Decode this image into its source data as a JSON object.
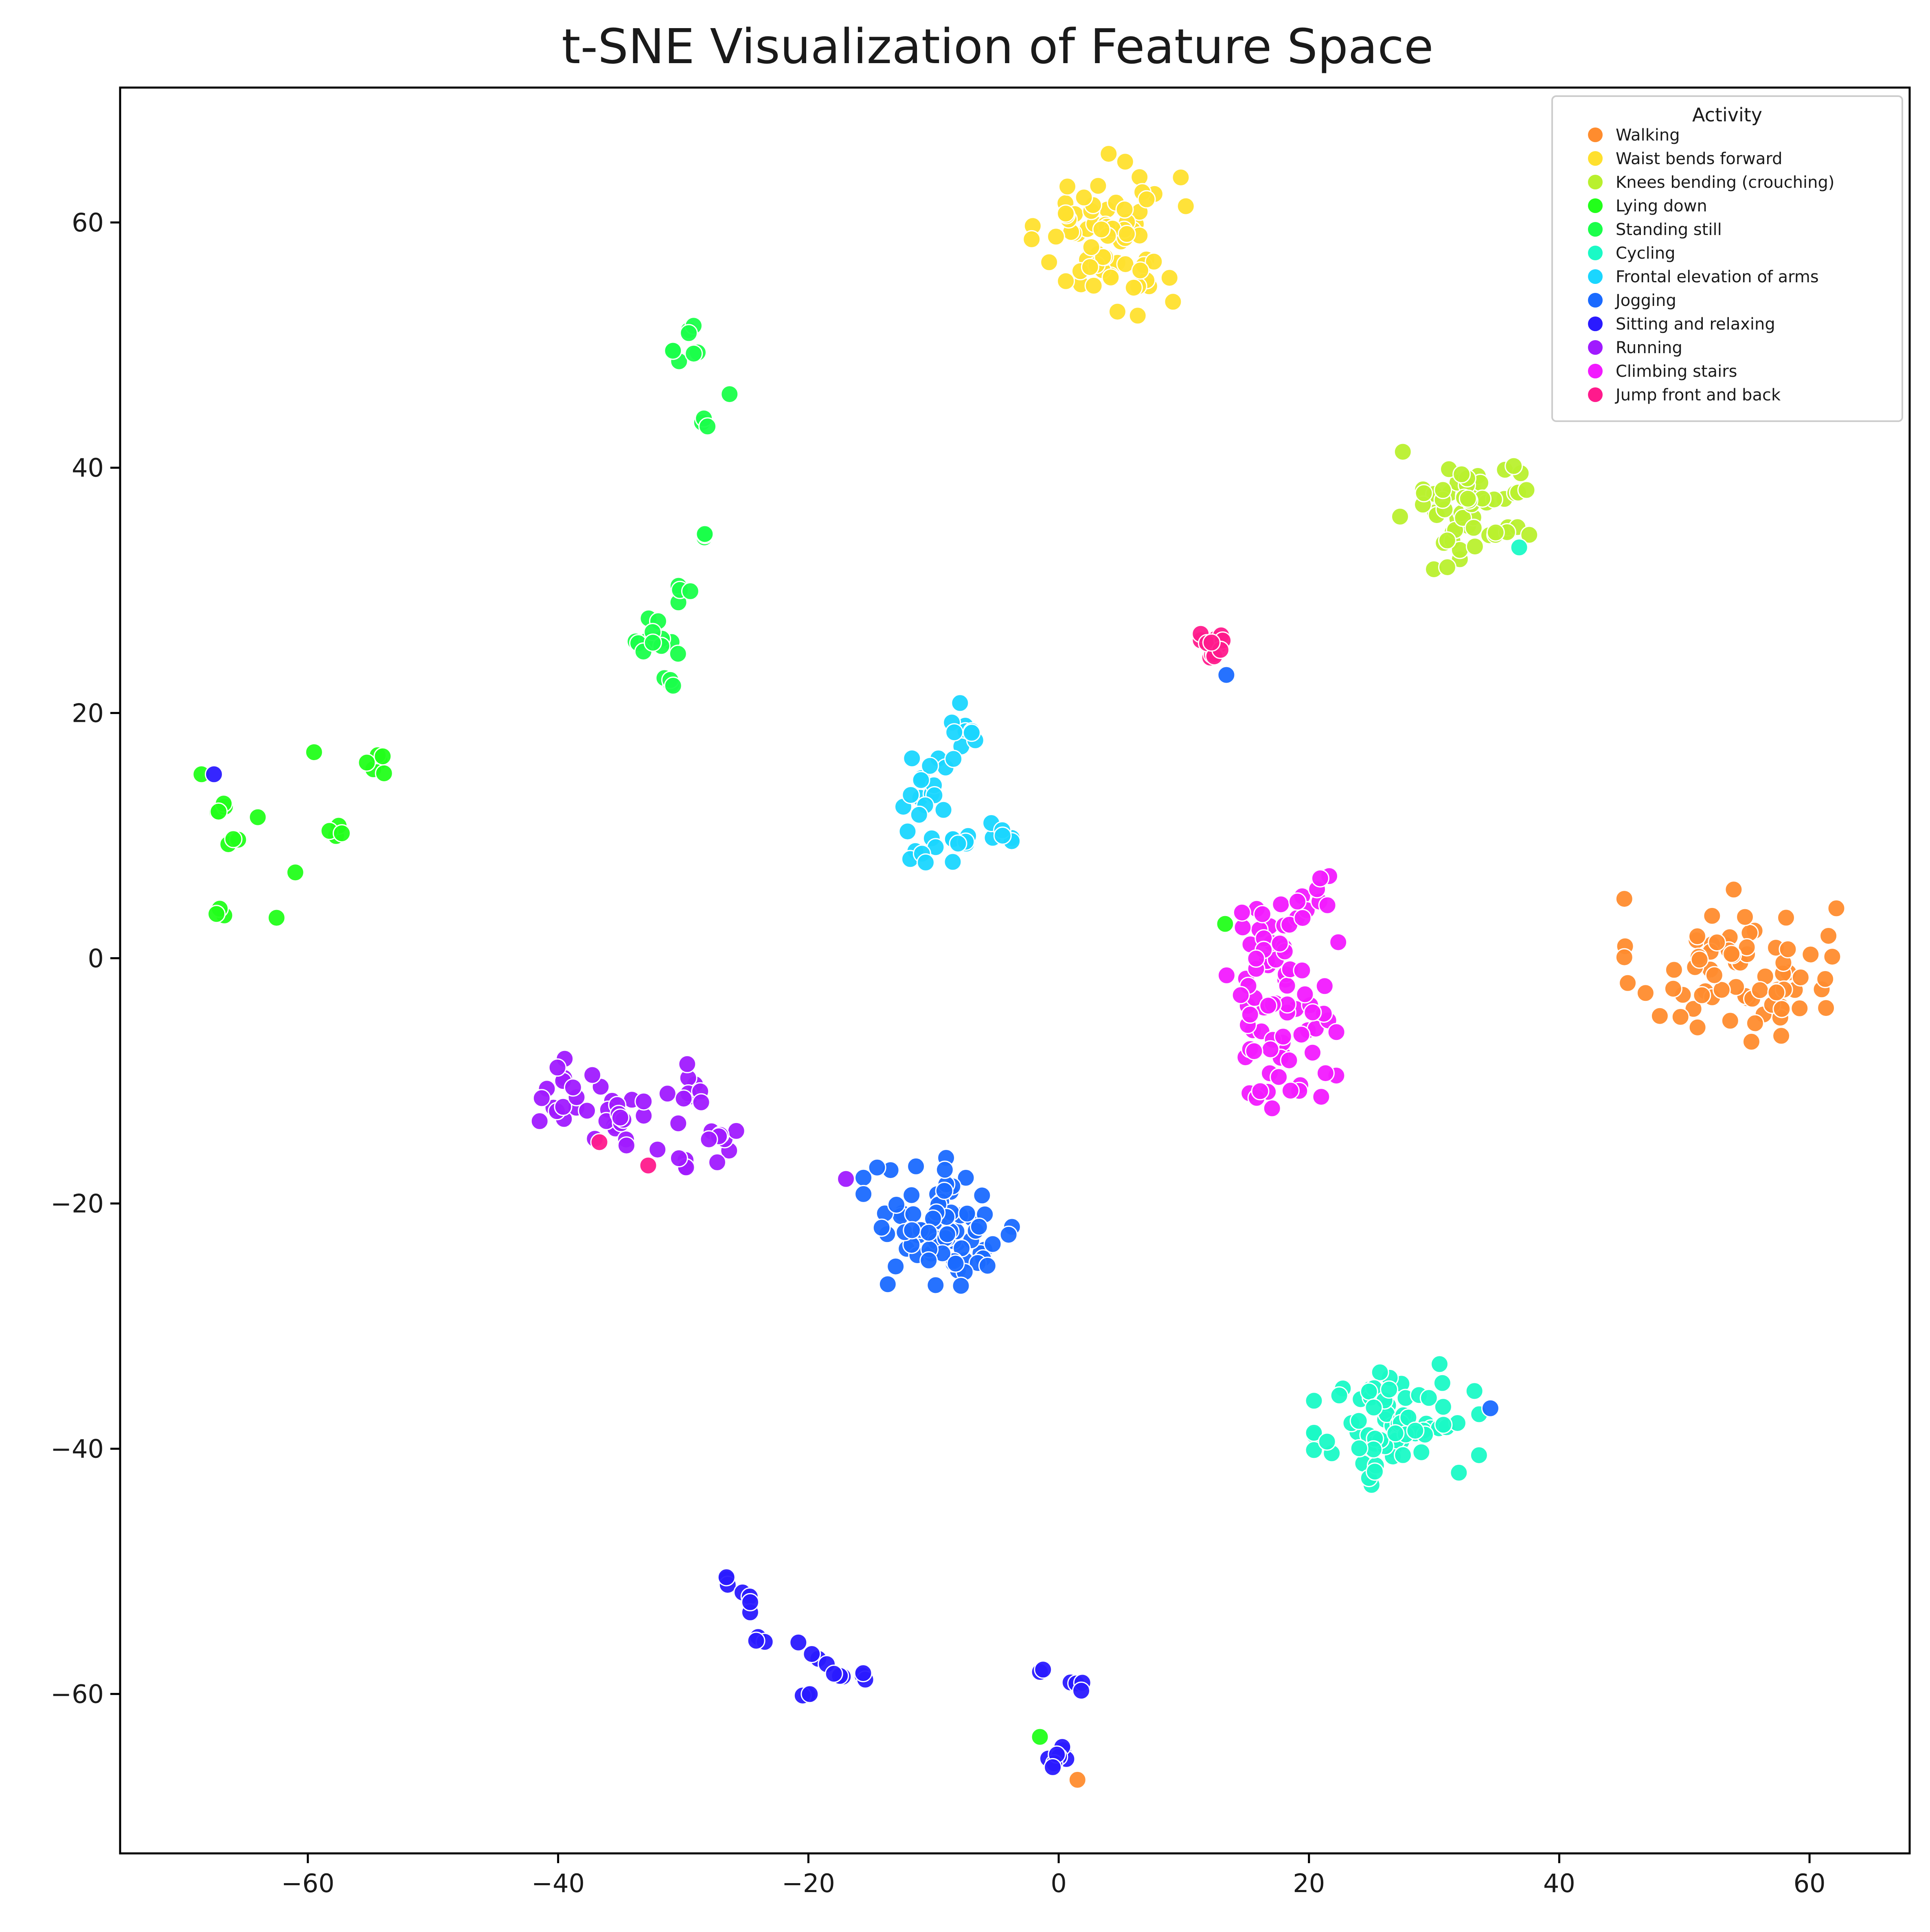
{
  "chart_data": {
    "type": "scatter",
    "title": "t-SNE Visualization of Feature Space",
    "xlabel": "",
    "ylabel": "",
    "xlim": [
      -75,
      68
    ],
    "ylim": [
      -73,
      71
    ],
    "xticks": [
      -60,
      -40,
      -20,
      0,
      20,
      40,
      60
    ],
    "yticks": [
      -60,
      -40,
      -20,
      0,
      20,
      40,
      60
    ],
    "grid": false,
    "legend": {
      "title": "Activity",
      "placement": "top-right"
    },
    "series": [
      {
        "name": "Walking",
        "color": "#ff8c2e",
        "clusters": [
          {
            "cx": 54,
            "cy": -1,
            "sx": 4,
            "sy": 3,
            "n": 75
          },
          {
            "cx": 1.5,
            "cy": -67,
            "sx": 0.2,
            "sy": 0.2,
            "n": 1
          }
        ]
      },
      {
        "name": "Waist bends forward",
        "color": "#ffe02e",
        "clusters": [
          {
            "cx": 4,
            "cy": 59,
            "sx": 2.8,
            "sy": 3,
            "n": 75
          }
        ]
      },
      {
        "name": "Knees bending (crouching)",
        "color": "#b9f02e",
        "clusters": [
          {
            "cx": 33,
            "cy": 37,
            "sx": 2.6,
            "sy": 2.4,
            "n": 60
          },
          {
            "cx": 27.5,
            "cy": 41.3,
            "sx": 0.2,
            "sy": 0.2,
            "n": 1
          }
        ]
      },
      {
        "name": "Lying down",
        "color": "#22ff1a",
        "clusters": [
          {
            "cx": -67,
            "cy": 12,
            "sx": 0.4,
            "sy": 0.4,
            "n": 4
          },
          {
            "cx": -66,
            "cy": 9.3,
            "sx": 0.3,
            "sy": 0.3,
            "n": 3
          },
          {
            "cx": -67,
            "cy": 3.6,
            "sx": 0.3,
            "sy": 0.2,
            "n": 3
          },
          {
            "cx": -68.5,
            "cy": 15,
            "sx": 0.2,
            "sy": 0.2,
            "n": 1
          },
          {
            "cx": -64,
            "cy": 11.5,
            "sx": 0.2,
            "sy": 0.2,
            "n": 1
          },
          {
            "cx": -62.5,
            "cy": 3.3,
            "sx": 0.2,
            "sy": 0.2,
            "n": 1
          },
          {
            "cx": -61,
            "cy": 7,
            "sx": 0.2,
            "sy": 0.2,
            "n": 1
          },
          {
            "cx": -59.5,
            "cy": 16.8,
            "sx": 0.2,
            "sy": 0.2,
            "n": 1
          },
          {
            "cx": -57.5,
            "cy": 10.6,
            "sx": 0.4,
            "sy": 0.4,
            "n": 4
          },
          {
            "cx": -54.2,
            "cy": 15.5,
            "sx": 0.5,
            "sy": 0.8,
            "n": 6
          },
          {
            "cx": -1.5,
            "cy": -63.5,
            "sx": 0.2,
            "sy": 0.2,
            "n": 1
          },
          {
            "cx": 13.3,
            "cy": 2.8,
            "sx": 0.2,
            "sy": 0.2,
            "n": 1
          }
        ]
      },
      {
        "name": "Standing still",
        "color": "#1aff4a",
        "clusters": [
          {
            "cx": -29.5,
            "cy": 49.5,
            "sx": 0.6,
            "sy": 1.2,
            "n": 8
          },
          {
            "cx": -26.3,
            "cy": 46,
            "sx": 0.2,
            "sy": 0.2,
            "n": 1
          },
          {
            "cx": -28.5,
            "cy": 43.7,
            "sx": 0.3,
            "sy": 0.3,
            "n": 3
          },
          {
            "cx": -28.2,
            "cy": 34.5,
            "sx": 0.3,
            "sy": 0.3,
            "n": 3
          },
          {
            "cx": -29.8,
            "cy": 29.9,
            "sx": 0.4,
            "sy": 0.4,
            "n": 4
          },
          {
            "cx": -32.5,
            "cy": 26.2,
            "sx": 1,
            "sy": 0.8,
            "n": 12
          },
          {
            "cx": -30.8,
            "cy": 22.5,
            "sx": 0.5,
            "sy": 0.4,
            "n": 4
          }
        ]
      },
      {
        "name": "Cycling",
        "color": "#1afac6",
        "clusters": [
          {
            "cx": 27,
            "cy": -38,
            "sx": 3,
            "sy": 2.5,
            "n": 75
          },
          {
            "cx": 36.8,
            "cy": 33.5,
            "sx": 0.2,
            "sy": 0.2,
            "n": 1
          }
        ]
      },
      {
        "name": "Frontal elevation of arms",
        "color": "#1ad6ff",
        "clusters": [
          {
            "cx": -8,
            "cy": 18,
            "sx": 1,
            "sy": 1.5,
            "n": 12
          },
          {
            "cx": -11,
            "cy": 13,
            "sx": 1.5,
            "sy": 1.5,
            "n": 15
          },
          {
            "cx": -9,
            "cy": 9.5,
            "sx": 2,
            "sy": 1,
            "n": 14
          },
          {
            "cx": -4.5,
            "cy": 10.5,
            "sx": 0.6,
            "sy": 0.6,
            "n": 5
          }
        ]
      },
      {
        "name": "Jogging",
        "color": "#1a6aff",
        "clusters": [
          {
            "cx": -9,
            "cy": -22,
            "sx": 3,
            "sy": 2.6,
            "n": 80
          },
          {
            "cx": 13.4,
            "cy": 23.1,
            "sx": 0.2,
            "sy": 0.2,
            "n": 1
          },
          {
            "cx": 34.5,
            "cy": -36.7,
            "sx": 0.2,
            "sy": 0.2,
            "n": 1
          }
        ]
      },
      {
        "name": "Sitting and relaxing",
        "color": "#2a1aff",
        "clusters": [
          {
            "cx": -26.7,
            "cy": -50.7,
            "sx": 0.3,
            "sy": 0.3,
            "n": 3
          },
          {
            "cx": -24.7,
            "cy": -52.6,
            "sx": 0.4,
            "sy": 0.4,
            "n": 4
          },
          {
            "cx": -23.8,
            "cy": -55,
            "sx": 0.3,
            "sy": 0.6,
            "n": 3
          },
          {
            "cx": -20.8,
            "cy": -55.8,
            "sx": 0.2,
            "sy": 0.2,
            "n": 1
          },
          {
            "cx": -20.2,
            "cy": -60,
            "sx": 0.3,
            "sy": 0.2,
            "n": 3
          },
          {
            "cx": -18.7,
            "cy": -57,
            "sx": 0.5,
            "sy": 0.5,
            "n": 3
          },
          {
            "cx": -17.3,
            "cy": -58.5,
            "sx": 0.3,
            "sy": 0.2,
            "n": 3
          },
          {
            "cx": -15.5,
            "cy": -58.5,
            "sx": 0.2,
            "sy": 0.2,
            "n": 3
          },
          {
            "cx": -1.5,
            "cy": -58,
            "sx": 0.2,
            "sy": 0.2,
            "n": 2
          },
          {
            "cx": 1.5,
            "cy": -59.6,
            "sx": 0.3,
            "sy": 0.3,
            "n": 4
          },
          {
            "cx": 0,
            "cy": -65,
            "sx": 0.6,
            "sy": 0.7,
            "n": 8
          },
          {
            "cx": -67.5,
            "cy": 15,
            "sx": 0.2,
            "sy": 0.2,
            "n": 1
          }
        ]
      },
      {
        "name": "Running",
        "color": "#a01aff",
        "clusters": [
          {
            "cx": -38,
            "cy": -11.5,
            "sx": 2.2,
            "sy": 1.5,
            "n": 25
          },
          {
            "cx": -35.5,
            "cy": -14,
            "sx": 1,
            "sy": 1,
            "n": 8
          },
          {
            "cx": -29.5,
            "cy": -11,
            "sx": 0.8,
            "sy": 1.5,
            "n": 10
          },
          {
            "cx": -27,
            "cy": -15,
            "sx": 1.2,
            "sy": 0.8,
            "n": 8
          },
          {
            "cx": -30.5,
            "cy": -16.5,
            "sx": 1,
            "sy": 0.6,
            "n": 5
          },
          {
            "cx": -17,
            "cy": -18,
            "sx": 0.2,
            "sy": 0.2,
            "n": 1
          }
        ]
      },
      {
        "name": "Climbing stairs",
        "color": "#f21aff",
        "clusters": [
          {
            "cx": 17.5,
            "cy": -3,
            "sx": 2.2,
            "sy": 4.2,
            "n": 80
          },
          {
            "cx": 20.5,
            "cy": 4.5,
            "sx": 0.8,
            "sy": 1,
            "n": 8
          }
        ]
      },
      {
        "name": "Jump front and back",
        "color": "#ff1a8c",
        "clusters": [
          {
            "cx": 12.5,
            "cy": 25,
            "sx": 0.8,
            "sy": 0.8,
            "n": 14
          },
          {
            "cx": -36.7,
            "cy": -15,
            "sx": 0.2,
            "sy": 0.2,
            "n": 1
          },
          {
            "cx": -32.8,
            "cy": -16.9,
            "sx": 0.2,
            "sy": 0.2,
            "n": 1
          }
        ]
      }
    ]
  }
}
